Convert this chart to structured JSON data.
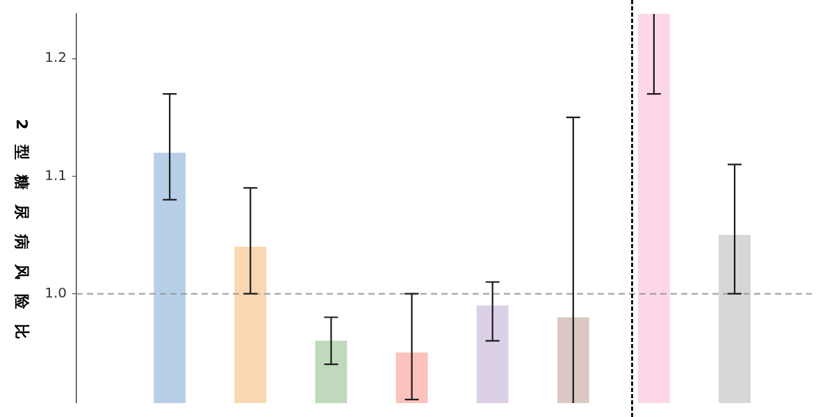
{
  "chart_data": {
    "type": "bar",
    "ylabel": "2型糖尿病风险比",
    "categories": [
      null,
      null,
      null,
      null,
      null,
      null,
      null,
      null
    ],
    "values": [
      1.12,
      1.04,
      0.96,
      0.95,
      0.99,
      0.98,
      1.238,
      1.05
    ],
    "colors": [
      "#b7d0e8",
      "#f9d7b1",
      "#c0d9bd",
      "#fbc2bd",
      "#dcd0e6",
      "#dcc8c3",
      "#fdd6e8",
      "#d7d6d9"
    ],
    "errors": [
      [
        1.08,
        1.17
      ],
      [
        1.0,
        1.09
      ],
      [
        0.94,
        0.98
      ],
      [
        0.91,
        1.0
      ],
      [
        0.96,
        1.01
      ],
      [
        0.907,
        1.15
      ],
      [
        1.17,
        1.238
      ],
      [
        1.0,
        1.11
      ]
    ],
    "ylim": [
      0.907,
      1.238
    ],
    "yticks": [
      {
        "value": 1.0,
        "label": "1.0"
      },
      1.1,
      1.2
    ],
    "ref_lines": [
      {
        "axis": "y",
        "value": 1.0,
        "color": "#9a9a9a",
        "line_style": "dashed"
      }
    ]
  }
}
